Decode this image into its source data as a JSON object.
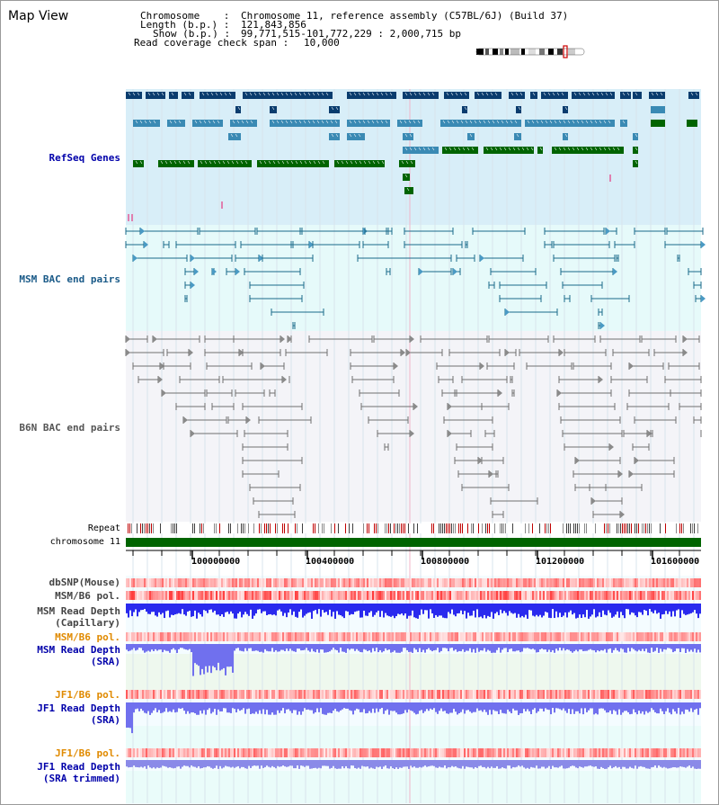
{
  "view": {
    "title": "Map View"
  },
  "header": {
    "chromosome_label": "Chromosome    :",
    "chromosome_value": "Chromosome 11, reference assembly (C57BL/6J) (Build 37)",
    "length_label": "Length (b.p.) :",
    "length_value": "121,843,856",
    "show_label": "Show (b.p.) :",
    "show_value": "99,771,515-101,772,229 : 2,000,715 bp",
    "coverage_label": "Read coverage check span :",
    "coverage_value": "10,000"
  },
  "tracks": {
    "refseq": "RefSeq Genes",
    "msm_bac": "MSM BAC end pairs",
    "b6n_bac": "B6N BAC end pairs",
    "repeat": "Repeat",
    "chromosome": "chromosome 11",
    "dbsnp": "dbSNP(Mouse)",
    "msm_b6_pol": "MSM/B6 pol.",
    "msm_depth_cap_1": "MSM Read Depth",
    "msm_depth_cap_2": "(Capillary)",
    "msm_b6_pol_2": "MSM/B6 pol.",
    "msm_depth_sra_1": "MSM Read Depth",
    "msm_depth_sra_2": "(SRA)",
    "jf1_b6_pol": "JF1/B6 pol.",
    "jf1_depth_sra_1": "JF1 Read Depth",
    "jf1_depth_sra_2": "(SRA)",
    "jf1_b6_pol_2": "JF1/B6 pol.",
    "jf1_depth_trim_1": "JF1 Read Depth",
    "jf1_depth_trim_2": "(SRA trimmed)"
  },
  "axis": {
    "ticks": [
      "100000000",
      "100400000",
      "100800000",
      "101200000",
      "101600000"
    ]
  },
  "colors": {
    "refseq_bg": "#d8eef8",
    "msm_bac_bg": "#e6fafa",
    "b6n_bac_bg": "#f4f4f8",
    "gene_dark": "#0a3c6e",
    "gene_mid": "#3a8ab4",
    "gene_green": "#006400",
    "msm_line": "#1a6a8a",
    "b6n_line": "#707070",
    "chromosome_bar": "#006400",
    "depth_blue": "#2a2aee",
    "depth_sra": "#7070ee"
  }
}
